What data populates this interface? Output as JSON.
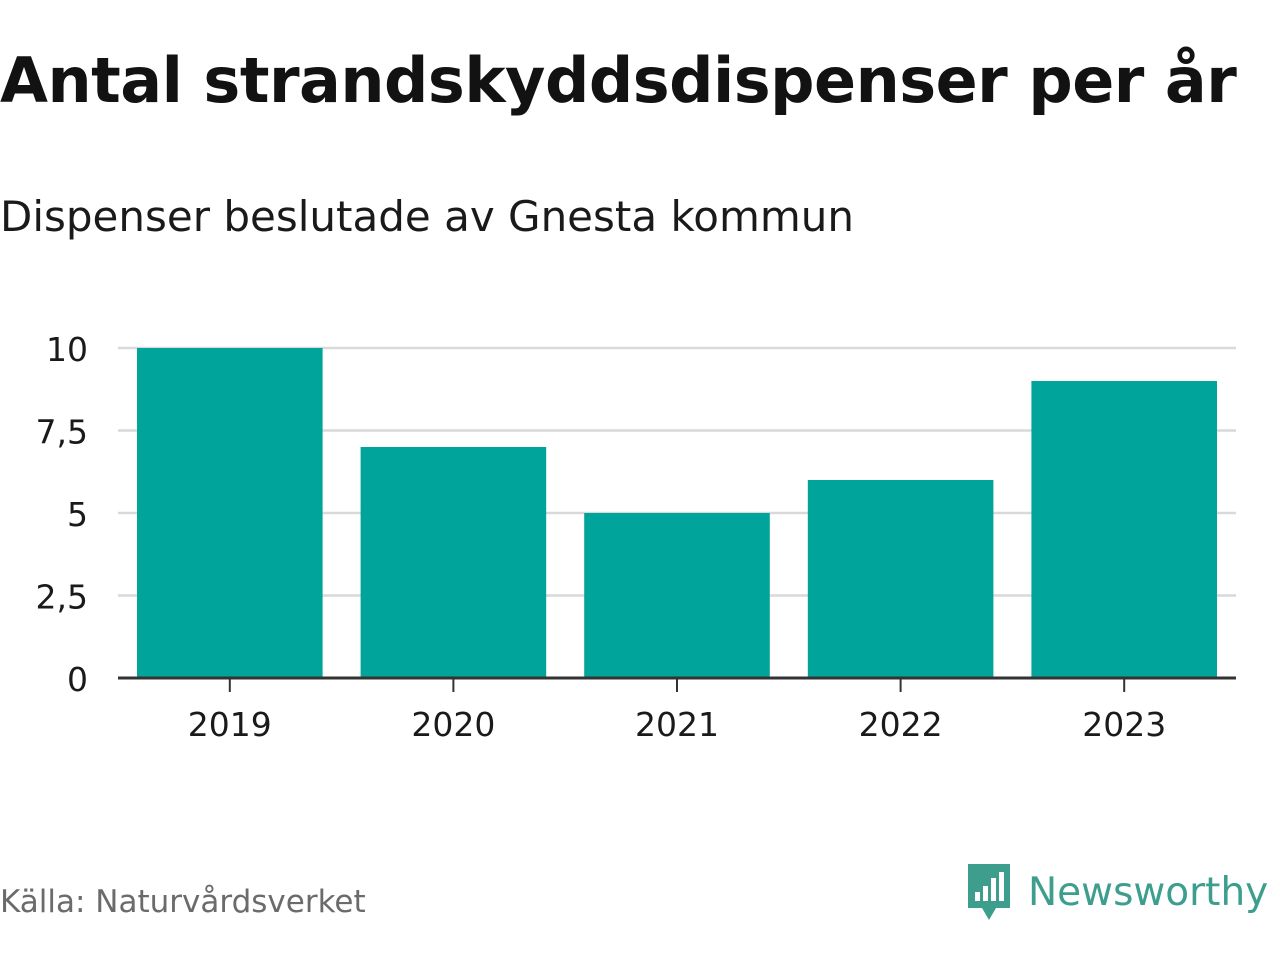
{
  "title": "Antal strandskyddsdispenser per år",
  "subtitle": "Dispenser beslutade av Gnesta kommun",
  "source": "Källa: Naturvårdsverket",
  "brand": {
    "name": "Newsworthy",
    "icon": "newsworthy-logo-icon",
    "color": "#3d9e8e"
  },
  "colors": {
    "bar": "#00a49a",
    "grid": "#d9d9d9",
    "axis": "#333333"
  },
  "chart_data": {
    "type": "bar",
    "title": "Antal strandskyddsdispenser per år",
    "subtitle": "Dispenser beslutade av Gnesta kommun",
    "xlabel": "",
    "ylabel": "",
    "categories": [
      "2019",
      "2020",
      "2021",
      "2022",
      "2023"
    ],
    "values": [
      10,
      7,
      5,
      6,
      9
    ],
    "ylim": [
      0,
      10
    ],
    "yticks": [
      0,
      2.5,
      5,
      7.5,
      10
    ],
    "ytick_labels": [
      "0",
      "2,5",
      "5",
      "7,5",
      "10"
    ],
    "grid": true,
    "legend": "none"
  }
}
